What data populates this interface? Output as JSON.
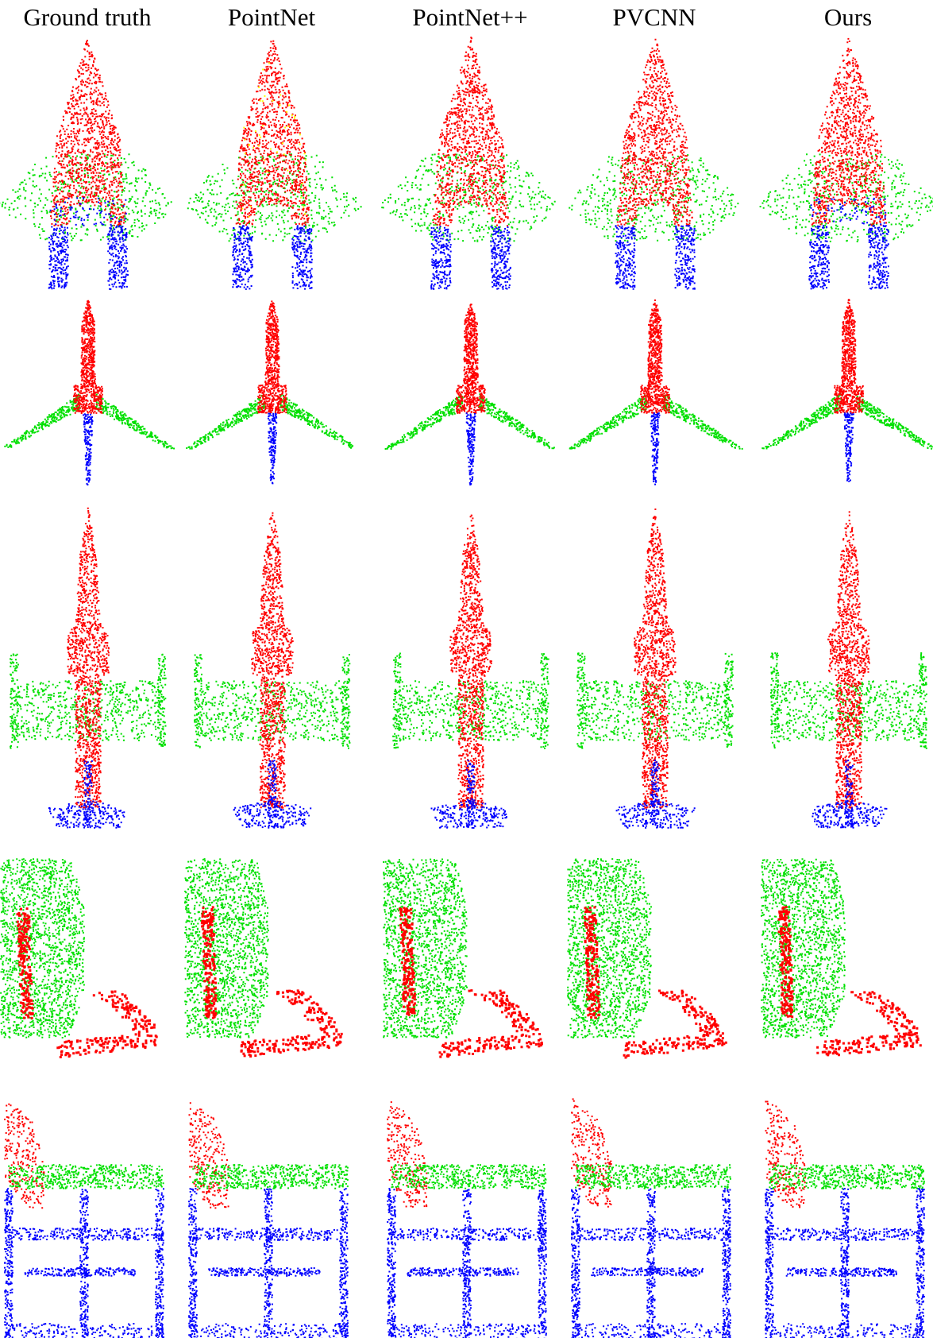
{
  "columns": [
    "Ground truth",
    "PointNet",
    "PointNet++",
    "PVCNN",
    "Ours"
  ]
}
